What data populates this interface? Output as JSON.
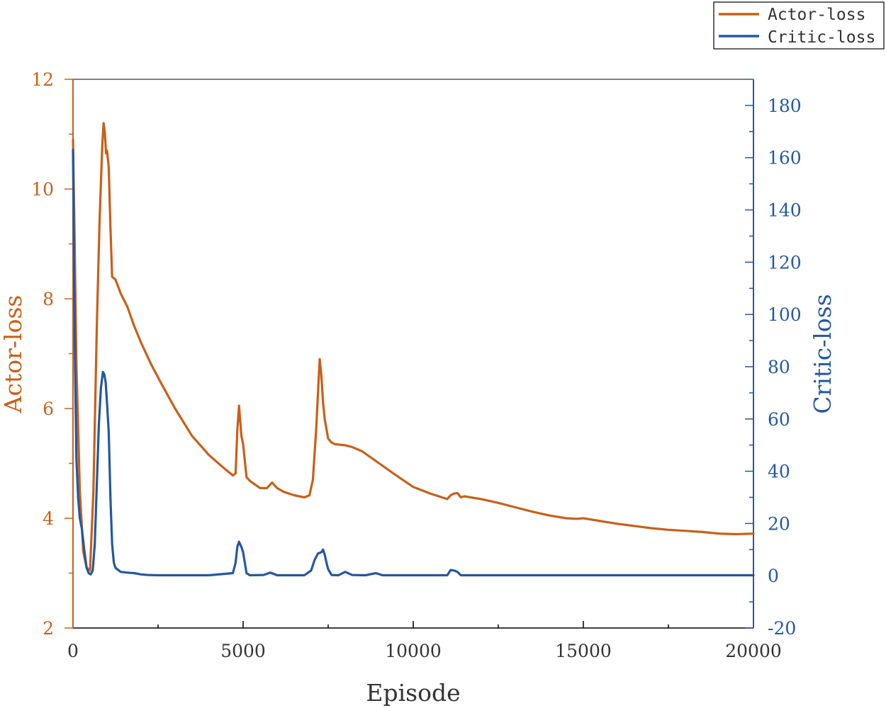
{
  "chart_data": {
    "type": "line",
    "xlabel": "Episode",
    "xlim": [
      0,
      20000
    ],
    "xticks": [
      0,
      5000,
      10000,
      15000,
      20000
    ],
    "xtick_labels": [
      "0",
      "5000",
      "10000",
      "15000",
      "20000"
    ],
    "y_left": {
      "label": "Actor-loss",
      "lim": [
        2,
        12
      ],
      "ticks": [
        2,
        4,
        6,
        8,
        10,
        12
      ],
      "tick_labels": [
        "2",
        "4",
        "6",
        "8",
        "10",
        "12"
      ],
      "color": "#C8601A"
    },
    "y_right": {
      "label": "Critic-loss",
      "lim": [
        -20,
        190
      ],
      "ticks": [
        -20,
        0,
        20,
        40,
        60,
        80,
        100,
        120,
        140,
        160,
        180
      ],
      "tick_labels": [
        "-20",
        "0",
        "20",
        "40",
        "60",
        "80",
        "100",
        "120",
        "140",
        "160",
        "180"
      ],
      "color": "#2458A0"
    },
    "legend": {
      "position": "top-right, outside plot"
    },
    "series": [
      {
        "name": "Actor-loss",
        "axis": "left",
        "color": "#C8601A",
        "x": [
          0,
          40,
          100,
          200,
          300,
          400,
          500,
          600,
          700,
          780,
          860,
          900,
          940,
          970,
          1000,
          1050,
          1100,
          1150,
          1250,
          1400,
          1600,
          1800,
          2000,
          2300,
          2600,
          3000,
          3500,
          4000,
          4500,
          4700,
          4780,
          4830,
          4880,
          4950,
          5000,
          5100,
          5200,
          5500,
          5700,
          5850,
          6000,
          6200,
          6500,
          6800,
          6950,
          7050,
          7150,
          7250,
          7300,
          7350,
          7400,
          7500,
          7600,
          7700,
          8000,
          8200,
          8500,
          9000,
          9500,
          10000,
          10500,
          11000,
          11100,
          11200,
          11300,
          11400,
          11500,
          12000,
          12500,
          13000,
          13500,
          14000,
          14500,
          14800,
          15000,
          15500,
          16000,
          16500,
          17000,
          17500,
          18000,
          18500,
          19000,
          19500,
          20000
        ],
        "y": [
          10.9,
          9.4,
          6.8,
          4.5,
          3.4,
          3.1,
          3.05,
          4.5,
          7.5,
          9.4,
          10.8,
          11.2,
          11.0,
          10.65,
          10.7,
          10.4,
          9.3,
          8.4,
          8.35,
          8.1,
          7.85,
          7.5,
          7.2,
          6.8,
          6.45,
          6.0,
          5.5,
          5.15,
          4.88,
          4.78,
          4.82,
          5.6,
          6.05,
          5.5,
          5.35,
          4.75,
          4.68,
          4.55,
          4.55,
          4.65,
          4.55,
          4.48,
          4.42,
          4.38,
          4.42,
          4.7,
          5.65,
          6.9,
          6.6,
          6.1,
          5.8,
          5.45,
          5.38,
          5.35,
          5.33,
          5.3,
          5.22,
          5.0,
          4.78,
          4.57,
          4.45,
          4.35,
          4.42,
          4.45,
          4.46,
          4.38,
          4.4,
          4.35,
          4.28,
          4.2,
          4.12,
          4.05,
          4.0,
          3.99,
          4.0,
          3.95,
          3.9,
          3.86,
          3.82,
          3.79,
          3.77,
          3.75,
          3.72,
          3.71,
          3.72
        ]
      },
      {
        "name": "Critic-loss",
        "axis": "right",
        "color": "#2458A0",
        "x": [
          0,
          30,
          60,
          100,
          150,
          200,
          260,
          330,
          400,
          460,
          520,
          580,
          640,
          700,
          760,
          820,
          880,
          920,
          960,
          1000,
          1050,
          1100,
          1150,
          1200,
          1250,
          1300,
          1400,
          1600,
          1800,
          2000,
          2200,
          2500,
          3000,
          4000,
          4700,
          4780,
          4830,
          4880,
          4950,
          5000,
          5050,
          5100,
          5200,
          5600,
          5800,
          6000,
          6200,
          6800,
          7000,
          7100,
          7200,
          7300,
          7350,
          7400,
          7450,
          7500,
          7600,
          7800,
          8000,
          8200,
          8600,
          8900,
          9100,
          11000,
          11100,
          11200,
          11300,
          11400,
          12000,
          14000,
          16000,
          18000,
          20000
        ],
        "y": [
          163,
          120,
          80,
          45,
          30,
          22,
          18,
          10,
          3,
          1,
          0.5,
          2,
          12,
          35,
          58,
          72,
          78,
          77,
          74,
          66,
          55,
          30,
          12,
          5,
          3,
          2.5,
          1.5,
          1.2,
          1,
          0.5,
          0.3,
          0.2,
          0.2,
          0.2,
          1,
          5,
          11,
          13,
          11,
          9,
          5,
          1,
          0.2,
          0.3,
          1.2,
          0.2,
          0.2,
          0.2,
          2,
          6,
          8.5,
          9,
          10,
          8,
          5,
          2.5,
          0.3,
          0.2,
          1.5,
          0.3,
          0.2,
          1,
          0.2,
          0.2,
          2.2,
          2,
          1.5,
          0.2,
          0.2,
          0.2,
          0.2,
          0.2,
          0.2
        ]
      }
    ]
  }
}
